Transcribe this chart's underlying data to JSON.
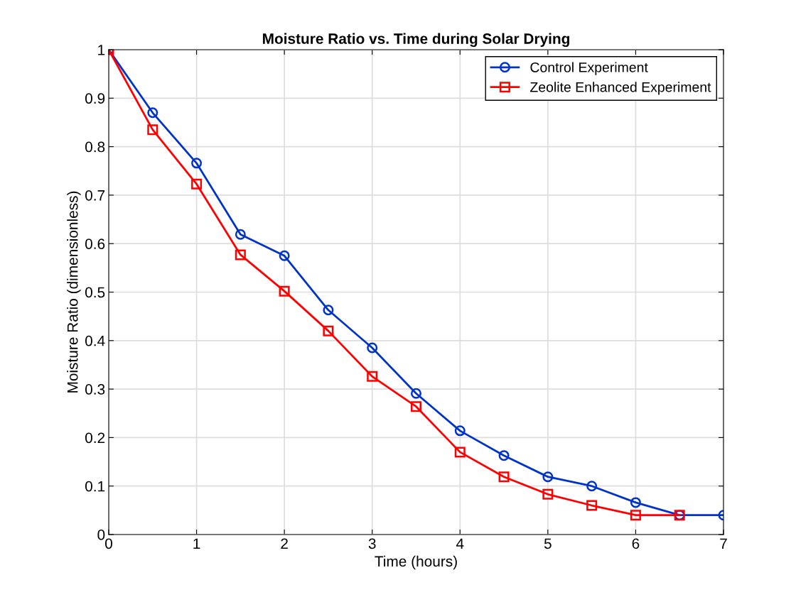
{
  "chart_data": {
    "type": "line",
    "title": "Moisture Ratio vs. Time during Solar Drying",
    "xlabel": "Time (hours)",
    "ylabel": "Moisture Ratio (dimensionless)",
    "x": [
      0,
      0.5,
      1,
      1.5,
      2,
      2.5,
      3,
      3.5,
      4,
      4.5,
      5,
      5.5,
      6,
      6.5,
      7
    ],
    "series": [
      {
        "name": "Control Experiment",
        "color": "#0033cc",
        "marker": "circle",
        "values": [
          1.0,
          0.87,
          0.766,
          0.619,
          0.575,
          0.463,
          0.385,
          0.291,
          0.214,
          0.163,
          0.119,
          0.1,
          0.066,
          0.04,
          0.04
        ]
      },
      {
        "name": "Zeolite Enhanced Experiment",
        "color": "#ff0000",
        "marker": "square",
        "values": [
          1.0,
          0.835,
          0.723,
          0.577,
          0.502,
          0.42,
          0.326,
          0.264,
          0.17,
          0.119,
          0.083,
          0.06,
          0.04,
          0.04,
          null
        ]
      }
    ],
    "xlim": [
      0,
      7
    ],
    "xticks": [
      0,
      1,
      2,
      3,
      4,
      5,
      6,
      7
    ],
    "ylim": [
      0,
      1
    ],
    "yticks": [
      0,
      0.1,
      0.2,
      0.3,
      0.4,
      0.5,
      0.6,
      0.7,
      0.8,
      0.9,
      1
    ],
    "grid": true,
    "legend": "top right",
    "line_style": "solid"
  }
}
